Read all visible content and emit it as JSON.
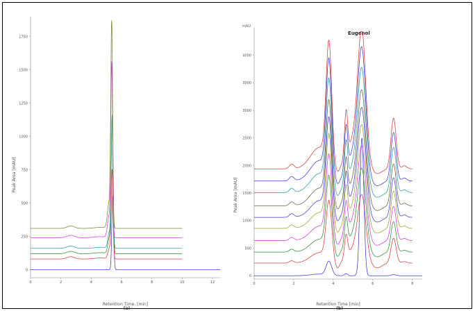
{
  "chart_data": [
    {
      "type": "line",
      "panel_label": "(a)",
      "xlabel": "Retention Time, [min]",
      "ylabel": "Peak Area [mAU]",
      "xlim": [
        0,
        12.5
      ],
      "ylim": [
        -60,
        1900
      ],
      "xticks": [
        0,
        2,
        4,
        6,
        8,
        10,
        12
      ],
      "yticks": [
        0,
        250,
        500,
        750,
        1000,
        1250,
        1500,
        1750
      ],
      "series": [
        {
          "color": "#3a3ad6",
          "baseline": 0,
          "peak_x": 5.42,
          "peak_height": 560,
          "x_end": 12.5
        },
        {
          "color": "#d23a3a",
          "baseline": 80,
          "peak_x": 5.38,
          "peak_height": 660,
          "x_end": 10
        },
        {
          "color": "#2f8a2f",
          "baseline": 120,
          "peak_x": 5.38,
          "peak_height": 1000,
          "x_end": 10
        },
        {
          "color": "#2a9a9a",
          "baseline": 160,
          "peak_x": 5.38,
          "peak_height": 980,
          "x_end": 10
        },
        {
          "color": "#d23ad2",
          "baseline": 240,
          "peak_x": 5.35,
          "peak_height": 1290,
          "x_end": 10
        },
        {
          "color": "#6d8a2a",
          "baseline": 310,
          "peak_x": 5.35,
          "peak_height": 1540,
          "x_end": 10
        }
      ]
    },
    {
      "type": "line",
      "panel_label": "(b)",
      "xlabel": "Retention Time [min]",
      "ylabel": "Peak Area [mAU]",
      "unit_label": "mAU",
      "annotation": "Eugenol",
      "xlim": [
        0,
        8.5
      ],
      "ylim": [
        -60,
        4500
      ],
      "xticks": [
        0,
        2,
        4,
        6,
        8
      ],
      "yticks": [
        0,
        500,
        1000,
        1500,
        2000,
        2500,
        3000,
        3500,
        4000
      ],
      "series": [
        {
          "color": "#3a3ad6",
          "baseline": 0,
          "scale": 0.55,
          "x_end": 8.5
        },
        {
          "color": "#d23a3a",
          "baseline": 230,
          "scale": 0.45,
          "x_end": 8.0
        },
        {
          "color": "#2f8a2f",
          "baseline": 430,
          "scale": 0.55,
          "x_end": 8.0
        },
        {
          "color": "#d23ad2",
          "baseline": 640,
          "scale": 0.62,
          "x_end": 8.0
        },
        {
          "color": "#9aa02a",
          "baseline": 860,
          "scale": 0.68,
          "x_end": 8.0
        },
        {
          "color": "#3a3ad6",
          "baseline": 1060,
          "scale": 0.72,
          "x_end": 8.0
        },
        {
          "color": "#6d5a3a",
          "baseline": 1270,
          "scale": 0.76,
          "x_end": 8.0
        },
        {
          "color": "#2a9a9a",
          "baseline": 1510,
          "scale": 0.82,
          "x_end": 8.0
        },
        {
          "color": "#3a3ad6",
          "baseline": 1720,
          "scale": 0.88,
          "x_end": 8.0
        },
        {
          "color": "#d23a3a",
          "baseline": 1940,
          "scale": 0.92,
          "x_end": 8.0
        }
      ]
    }
  ]
}
